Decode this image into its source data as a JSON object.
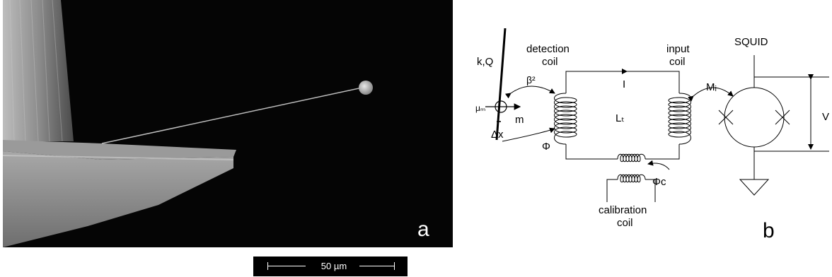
{
  "panel_a": {
    "letter": "a",
    "scale_bar_label": "50 µm"
  },
  "panel_b": {
    "letter": "b",
    "labels": {
      "cantilever": "k,Q",
      "detection_coil_line1": "detection",
      "detection_coil_line2": "coil",
      "input_coil_line1": "input",
      "input_coil_line2": "coil",
      "squid": "SQUID",
      "coupling": "β²",
      "current": "I",
      "inductance": "Lₜ",
      "mutual_inductance": "Mᵢ",
      "voltage": "V",
      "moment": "μₘ",
      "magnet": "m",
      "displacement": "Δx",
      "flux": "Φ",
      "calibration_flux": "Φc",
      "calibration_coil_line1": "calibration",
      "calibration_coil_line2": "coil"
    }
  }
}
